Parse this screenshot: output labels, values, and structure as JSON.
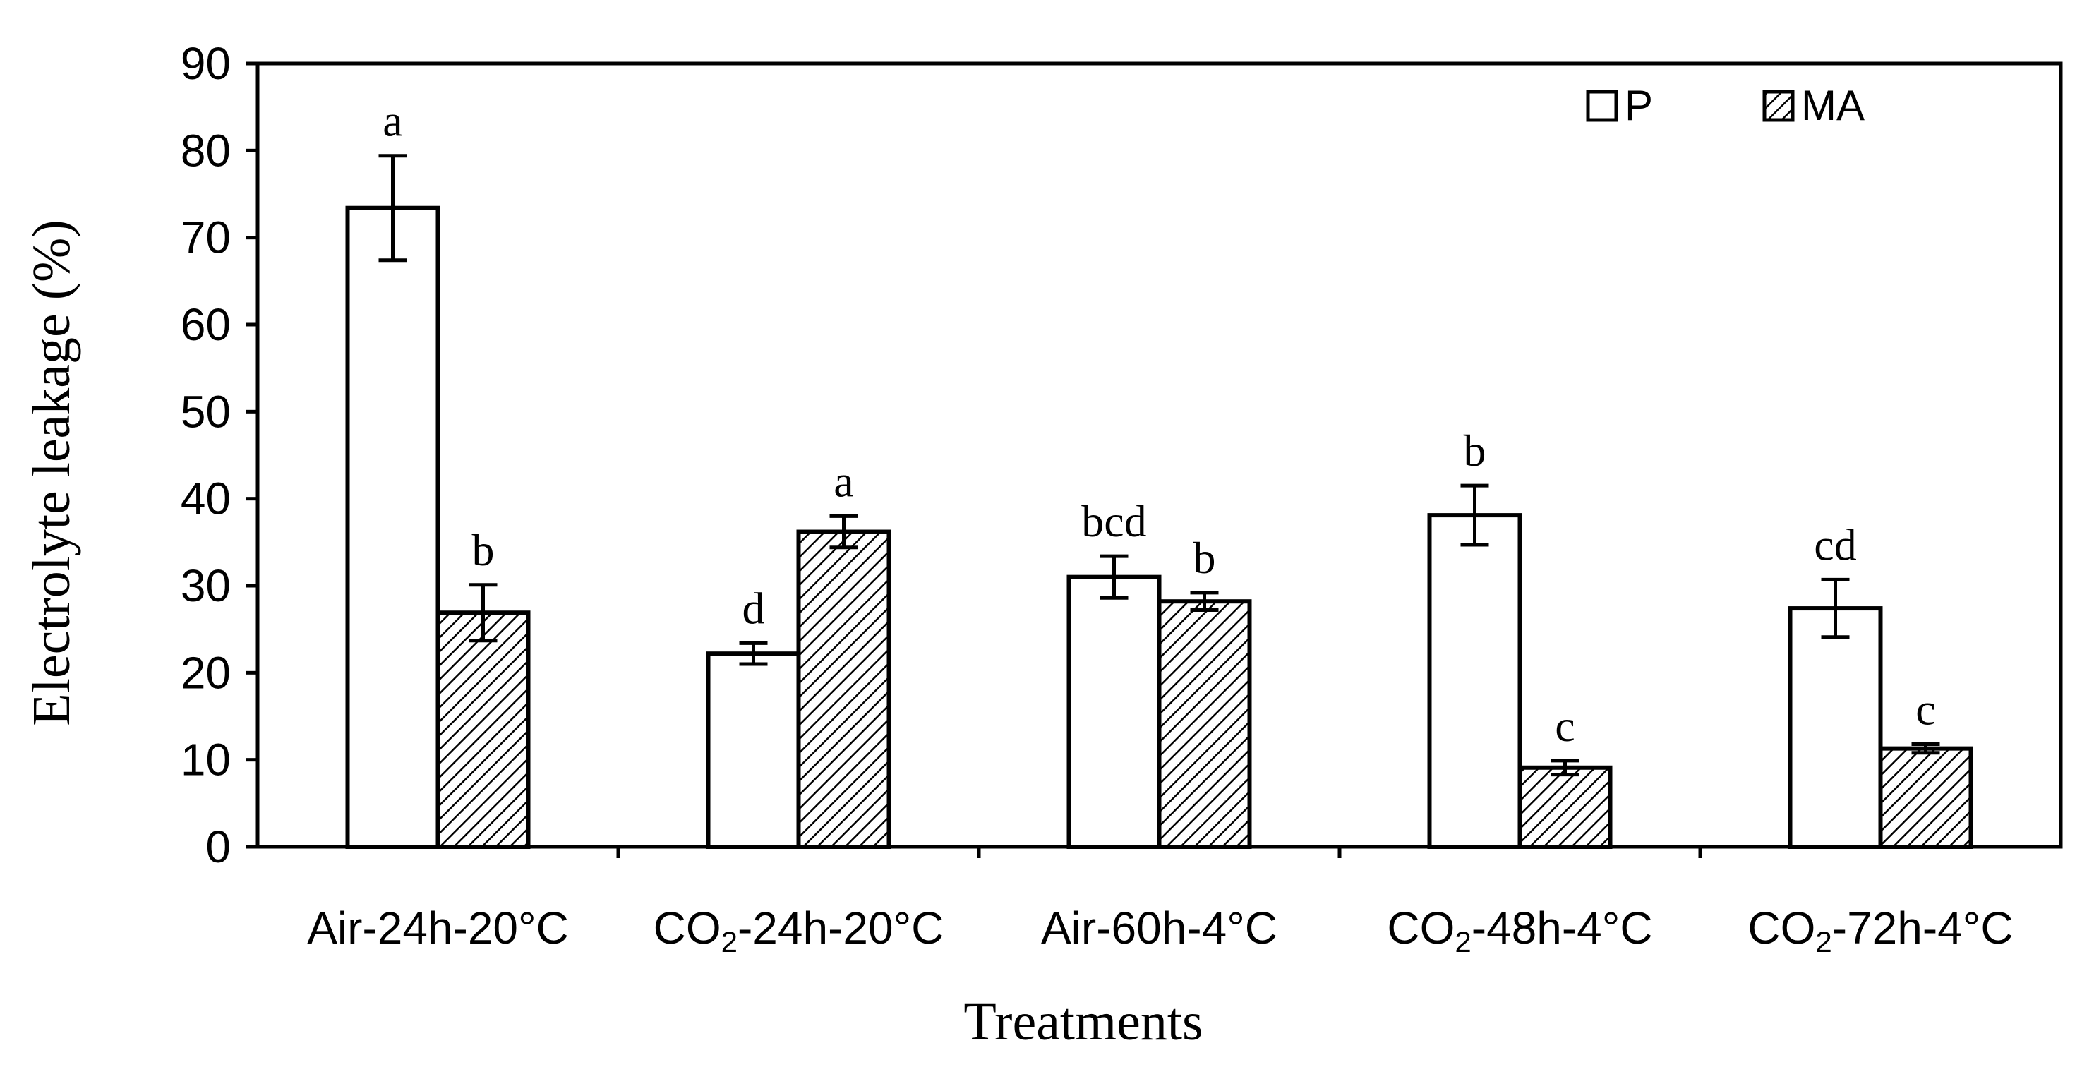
{
  "chart_data": {
    "type": "bar",
    "title": "",
    "xlabel": "Treatments",
    "ylabel": "Electrolyte leakage (%)",
    "ylim": [
      0,
      90
    ],
    "yticks": [
      0,
      10,
      20,
      30,
      40,
      50,
      60,
      70,
      80,
      90
    ],
    "grid": false,
    "legend_position": "top-right",
    "categories": [
      {
        "prefix": "Air",
        "sub": "",
        "suffix": "-24h-20°C",
        "full": "Air-24h-20°C"
      },
      {
        "prefix": "CO",
        "sub": "2",
        "suffix": "-24h-20°C",
        "full": "CO₂-24h-20°C"
      },
      {
        "prefix": "Air",
        "sub": "",
        "suffix": "-60h-4°C",
        "full": "Air-60h-4°C"
      },
      {
        "prefix": "CO",
        "sub": "2",
        "suffix": "-48h-4°C",
        "full": "CO₂-48h-4°C"
      },
      {
        "prefix": "CO",
        "sub": "2",
        "suffix": "-72h-4°C",
        "full": "CO₂-72h-4°C"
      }
    ],
    "series": [
      {
        "name": "P",
        "fill": "white",
        "values": [
          73.4,
          22.2,
          31.0,
          38.1,
          27.4
        ],
        "errors": [
          6.0,
          1.2,
          2.4,
          3.4,
          3.3
        ],
        "letters": [
          "a",
          "d",
          "bcd",
          "b",
          "cd"
        ]
      },
      {
        "name": "MA",
        "fill": "hatched",
        "values": [
          26.9,
          36.2,
          28.2,
          9.1,
          11.3
        ],
        "errors": [
          3.2,
          1.8,
          1.0,
          0.8,
          0.5
        ],
        "letters": [
          "b",
          "a",
          "b",
          "c",
          "c"
        ]
      }
    ]
  },
  "colors": {
    "background": "#ffffff",
    "ink": "#000000"
  }
}
